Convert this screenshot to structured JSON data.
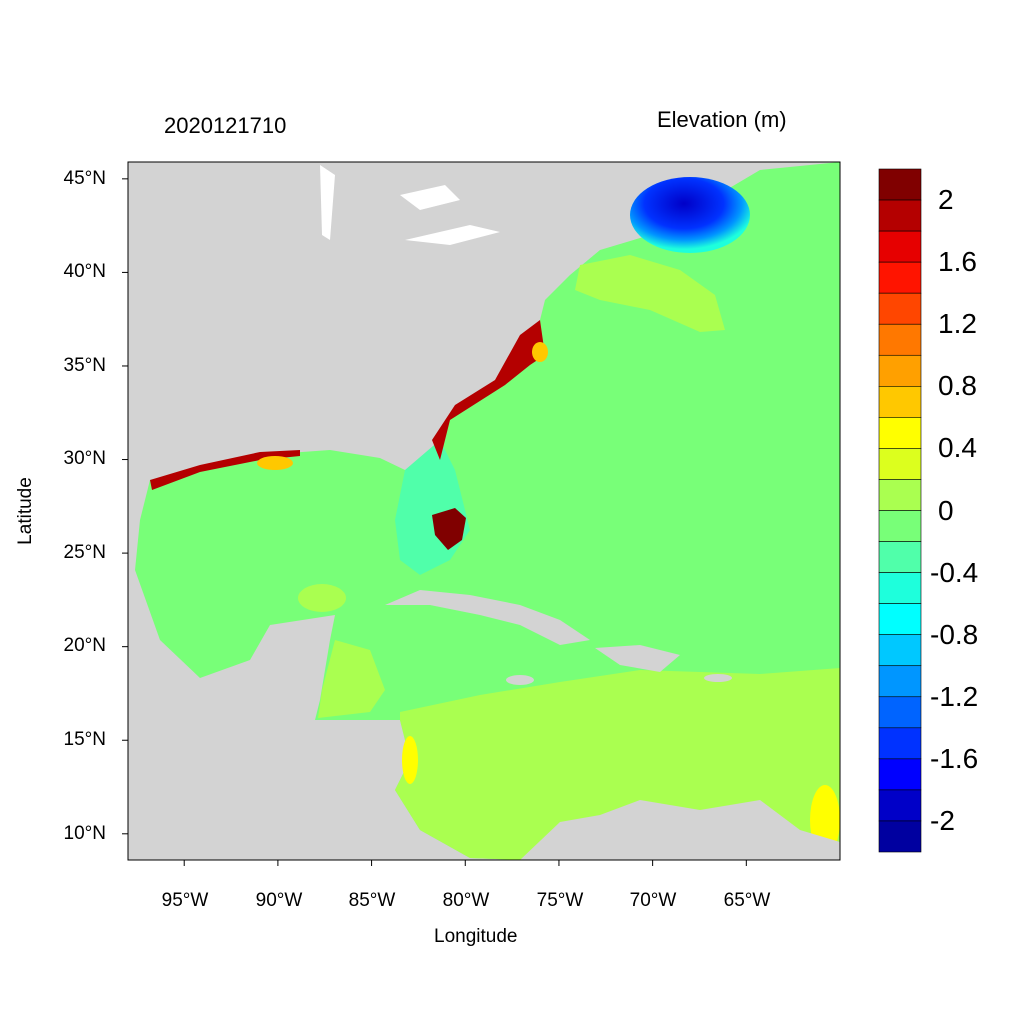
{
  "map": {
    "title_left": "2020121710",
    "title_right": "Elevation (m)",
    "xlabel": "Longitude",
    "ylabel": "Latitude",
    "lon_range": [
      -98.0,
      -60.0
    ],
    "lat_range": [
      8.6,
      45.9
    ],
    "lon_ticks": [
      "95°W",
      "90°W",
      "85°W",
      "80°W",
      "75°W",
      "70°W",
      "65°W"
    ],
    "lat_ticks": [
      "45°N",
      "40°N",
      "35°N",
      "30°N",
      "25°N",
      "20°N",
      "15°N",
      "10°N"
    ],
    "land_color": "#D3D3D3"
  },
  "colorbar": {
    "levels": [
      2,
      1.8,
      1.6,
      1.4,
      1.2,
      1.0,
      0.8,
      0.6,
      0.4,
      0.2,
      0,
      -0.2,
      -0.4,
      -0.6,
      -0.8,
      -1.0,
      -1.2,
      -1.4,
      -1.6,
      -1.8,
      -2
    ],
    "labels": [
      "2",
      "1.6",
      "1.2",
      "0.8",
      "0.4",
      "0",
      "-0.4",
      "-0.8",
      "-1.2",
      "-1.6",
      "-2"
    ],
    "colors": [
      "#800000",
      "#B40000",
      "#E60000",
      "#FF1400",
      "#FF4600",
      "#FF7800",
      "#FFA000",
      "#FFC800",
      "#FFFF00",
      "#DCFF1E",
      "#AAFF50",
      "#78FF78",
      "#50FFAA",
      "#1EFFDC",
      "#00FFFF",
      "#00C8FF",
      "#0096FF",
      "#0064FF",
      "#0032FF",
      "#0000FF",
      "#0000C8",
      "#0000A0"
    ]
  }
}
